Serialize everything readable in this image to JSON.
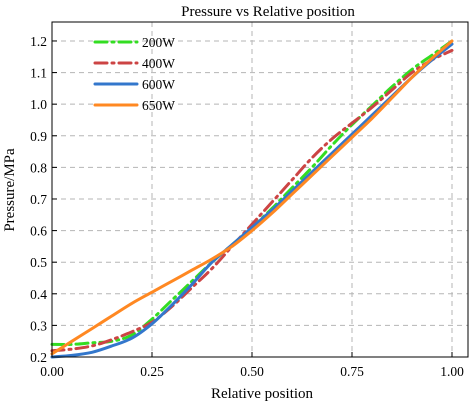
{
  "chart_data": {
    "type": "line",
    "title": "Pressure vs Relative position",
    "xlabel": "Relative position",
    "ylabel": "Pressure/MPa",
    "xlim": [
      0,
      1.04
    ],
    "ylim": [
      0.2,
      1.26
    ],
    "x_ticks": [
      "0.00",
      "0.25",
      "0.50",
      "0.75",
      "1.00"
    ],
    "y_ticks": [
      "0.2",
      "0.3",
      "0.4",
      "0.5",
      "0.6",
      "0.7",
      "0.8",
      "0.9",
      "1.0",
      "1.1",
      "1.2"
    ],
    "grid": true,
    "legend_position": "top-left",
    "series": [
      {
        "name": "200W",
        "color": "#33dd22",
        "style": "dash-dot",
        "x": [
          0,
          0.05,
          0.1,
          0.15,
          0.2,
          0.25,
          0.3,
          0.35,
          0.4,
          0.45,
          0.5,
          0.55,
          0.6,
          0.65,
          0.7,
          0.75,
          0.8,
          0.85,
          0.9,
          0.95,
          1.0
        ],
        "y": [
          0.24,
          0.24,
          0.245,
          0.25,
          0.27,
          0.32,
          0.38,
          0.44,
          0.5,
          0.555,
          0.61,
          0.67,
          0.735,
          0.8,
          0.87,
          0.935,
          0.995,
          1.055,
          1.11,
          1.155,
          1.2
        ]
      },
      {
        "name": "400W",
        "color": "#cc4444",
        "style": "dash-dot",
        "x": [
          0,
          0.05,
          0.1,
          0.15,
          0.2,
          0.25,
          0.3,
          0.35,
          0.4,
          0.45,
          0.5,
          0.55,
          0.6,
          0.65,
          0.7,
          0.75,
          0.8,
          0.85,
          0.9,
          0.95,
          1.0
        ],
        "y": [
          0.22,
          0.225,
          0.235,
          0.255,
          0.28,
          0.31,
          0.36,
          0.42,
          0.48,
          0.55,
          0.62,
          0.69,
          0.76,
          0.83,
          0.89,
          0.94,
          0.99,
          1.045,
          1.1,
          1.14,
          1.17
        ]
      },
      {
        "name": "600W",
        "color": "#3377cc",
        "style": "solid",
        "x": [
          0,
          0.05,
          0.1,
          0.15,
          0.2,
          0.25,
          0.3,
          0.35,
          0.4,
          0.45,
          0.5,
          0.55,
          0.6,
          0.65,
          0.7,
          0.75,
          0.8,
          0.85,
          0.9,
          0.95,
          1.0
        ],
        "y": [
          0.2,
          0.205,
          0.215,
          0.235,
          0.26,
          0.305,
          0.365,
          0.43,
          0.5,
          0.555,
          0.61,
          0.665,
          0.725,
          0.785,
          0.845,
          0.905,
          0.965,
          1.025,
          1.085,
          1.14,
          1.19
        ]
      },
      {
        "name": "650W",
        "color": "#ff8822",
        "style": "solid",
        "x": [
          0,
          0.05,
          0.1,
          0.15,
          0.2,
          0.25,
          0.3,
          0.35,
          0.4,
          0.45,
          0.5,
          0.55,
          0.6,
          0.65,
          0.7,
          0.75,
          0.8,
          0.85,
          0.9,
          0.95,
          1.0
        ],
        "y": [
          0.21,
          0.25,
          0.29,
          0.33,
          0.37,
          0.405,
          0.44,
          0.475,
          0.51,
          0.55,
          0.6,
          0.655,
          0.715,
          0.775,
          0.835,
          0.895,
          0.955,
          1.02,
          1.085,
          1.145,
          1.2
        ]
      }
    ]
  }
}
